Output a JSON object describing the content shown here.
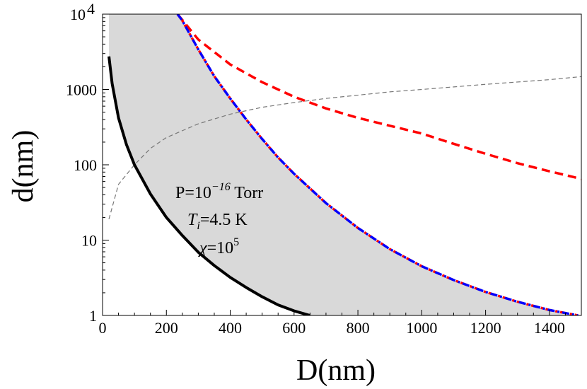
{
  "chart_data": {
    "type": "line",
    "title": "",
    "xlabel": "D(nm)",
    "ylabel": "d(nm)",
    "xlim": [
      0,
      1500
    ],
    "ylim": [
      1,
      10000
    ],
    "y_scale": "log",
    "grid": false,
    "legend": "none",
    "x_ticks": [
      {
        "value": 0,
        "label": "0"
      },
      {
        "value": 200,
        "label": "200"
      },
      {
        "value": 400,
        "label": "400"
      },
      {
        "value": 600,
        "label": "600"
      },
      {
        "value": 800,
        "label": "800"
      },
      {
        "value": 1000,
        "label": "1000"
      },
      {
        "value": 1200,
        "label": "1200"
      },
      {
        "value": 1400,
        "label": "1400"
      }
    ],
    "y_ticks": [
      {
        "value": 1,
        "label": "1"
      },
      {
        "value": 10,
        "label": "10"
      },
      {
        "value": 100,
        "label": "100"
      },
      {
        "value": 1000,
        "label": "1000"
      },
      {
        "value": 10000,
        "label": "10",
        "sup": "4"
      }
    ],
    "annotations": {
      "pressure_prefix": "P=10",
      "pressure_exp": "−16",
      "pressure_unit": " Torr",
      "temp_symbol": "T",
      "temp_sub": "i",
      "temp_value": "=4.5 K",
      "chi_symbol": "χ",
      "chi_value": "=10",
      "chi_exp": "5"
    },
    "shaded_region": {
      "color": "#d9d9d9",
      "lower_boundary": "black-solid",
      "upper_boundary": "blue-dashdot",
      "left_x": 20
    },
    "series": [
      {
        "style": "solid",
        "color": "#000000",
        "x": [
          20,
          30,
          50,
          75,
          100,
          150,
          200,
          250,
          300,
          350,
          400,
          450,
          500,
          550,
          600,
          650
        ],
        "y": [
          2750,
          1200,
          420,
          185,
          100,
          41,
          20,
          11.5,
          6.9,
          4.6,
          3.2,
          2.35,
          1.77,
          1.38,
          1.15,
          1.0
        ]
      },
      {
        "style": "dashdot",
        "color": "#0000ff",
        "color2": "#ff0000",
        "x": [
          235,
          250,
          300,
          350,
          400,
          450,
          500,
          550,
          600,
          700,
          800,
          900,
          1000,
          1100,
          1200,
          1300,
          1400,
          1490
        ],
        "y": [
          10000,
          8200,
          3400,
          1500,
          760,
          400,
          220,
          125,
          76,
          31,
          14.5,
          7.6,
          4.5,
          2.95,
          2.05,
          1.52,
          1.18,
          1.0
        ]
      },
      {
        "style": "dashed",
        "color": "#ff0000",
        "x": [
          235,
          300,
          400,
          500,
          600,
          700,
          800,
          900,
          1000,
          1100,
          1200,
          1300,
          1400,
          1500
        ],
        "y": [
          10000,
          4600,
          2150,
          1250,
          800,
          560,
          420,
          330,
          260,
          190,
          140,
          105,
          82,
          65
        ]
      },
      {
        "style": "thin-dashed",
        "color": "#777777",
        "x": [
          20,
          50,
          100,
          150,
          200,
          300,
          400,
          500,
          600,
          700,
          800,
          900,
          1000,
          1200,
          1400,
          1500
        ],
        "y": [
          19,
          55,
          100,
          165,
          230,
          350,
          470,
          580,
          670,
          760,
          840,
          930,
          1000,
          1170,
          1350,
          1480
        ]
      }
    ]
  }
}
